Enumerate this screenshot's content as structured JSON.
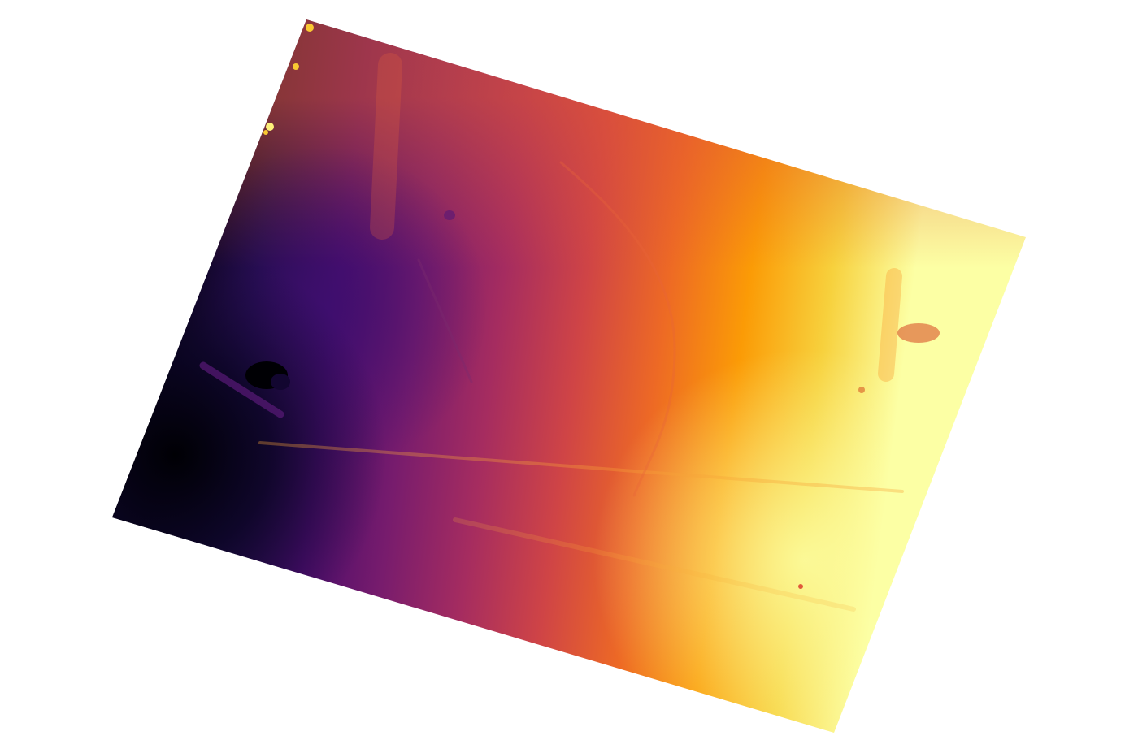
{
  "map": {
    "colormap": "inferno",
    "colormap_stops": [
      "#000004",
      "#1b0c41",
      "#4a0c6b",
      "#781c6d",
      "#a52c60",
      "#cf4446",
      "#ed6925",
      "#fb9b06",
      "#f7d13d",
      "#fcffa4"
    ],
    "background_color": "#ffffff",
    "raster_rotated": true,
    "legend_shown": false,
    "axes_shown": false
  }
}
